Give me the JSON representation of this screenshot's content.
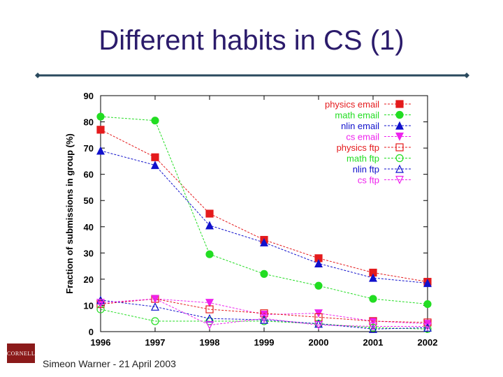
{
  "slide": {
    "title": "Different habits in CS (1)",
    "footer": "Simeon Warner - 21 April 2003",
    "logo_text": "CORNELL"
  },
  "chart_data": {
    "type": "line",
    "title": "",
    "xlabel": "",
    "ylabel": "Fraction of submissions in group (%)",
    "x": [
      1996,
      1997,
      1998,
      1999,
      2000,
      2001,
      2002
    ],
    "xlim": [
      1996,
      2002
    ],
    "ylim": [
      0,
      90
    ],
    "yticks": [
      0,
      10,
      20,
      30,
      40,
      50,
      60,
      70,
      80,
      90
    ],
    "grid": false,
    "legend_position": "top-right",
    "series": [
      {
        "name": "physics email",
        "color": "#e41a1c",
        "marker": "square-filled",
        "values": [
          77,
          66.5,
          45,
          35,
          28,
          22.5,
          19
        ]
      },
      {
        "name": "math email",
        "color": "#22dd22",
        "marker": "circle-filled",
        "values": [
          82,
          80.5,
          29.5,
          22,
          17.5,
          12.5,
          10.5
        ]
      },
      {
        "name": "nlin email",
        "color": "#1111cc",
        "marker": "triangle-filled",
        "values": [
          69,
          63.5,
          40.5,
          34,
          26,
          20.5,
          18.5
        ]
      },
      {
        "name": "cs email",
        "color": "#ee22ee",
        "marker": "triangle-down-filled",
        "values": [
          10.5,
          12.5,
          11,
          6.5,
          7,
          4,
          3
        ]
      },
      {
        "name": "physics ftp",
        "color": "#e41a1c",
        "marker": "square-open",
        "values": [
          10.5,
          12.5,
          8.5,
          7,
          5.5,
          4,
          3.5
        ]
      },
      {
        "name": "math ftp",
        "color": "#22dd22",
        "marker": "circle-open",
        "values": [
          8.5,
          4,
          4,
          4,
          3,
          1.5,
          1
        ]
      },
      {
        "name": "nlin ftp",
        "color": "#1111cc",
        "marker": "triangle-open",
        "values": [
          12,
          9.5,
          5,
          4.5,
          3,
          1,
          1.5
        ]
      },
      {
        "name": "cs ftp",
        "color": "#ee22ee",
        "marker": "triangle-down-open",
        "values": [
          11,
          12.5,
          2.5,
          5,
          2.5,
          2,
          2
        ]
      }
    ]
  }
}
